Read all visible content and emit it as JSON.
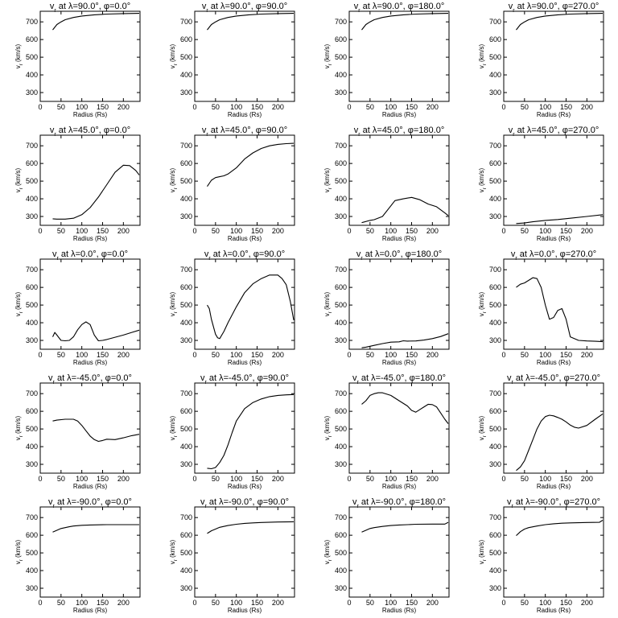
{
  "chart_data": {
    "type": "line",
    "grid_rows": 5,
    "grid_cols": 4,
    "xlabel": "Radius (Rs)",
    "ylabel": "v_r (km/s)",
    "xlim": [
      0,
      240
    ],
    "ylim": [
      250,
      760
    ],
    "xticks": [
      0,
      50,
      100,
      150,
      200
    ],
    "yticks": [
      300,
      400,
      500,
      600,
      700
    ],
    "grid": false,
    "panels": [
      {
        "title": "v_r at λ=90.0°, φ=0.0°",
        "x": [
          30,
          40,
          50,
          60,
          80,
          100,
          130,
          160,
          200,
          238
        ],
        "y": [
          655,
          685,
          700,
          712,
          725,
          733,
          740,
          744,
          747,
          748
        ]
      },
      {
        "title": "v_r at λ=90.0°, φ=90.0°",
        "x": [
          30,
          40,
          50,
          60,
          80,
          100,
          130,
          160,
          200,
          238
        ],
        "y": [
          655,
          685,
          700,
          712,
          725,
          733,
          740,
          744,
          747,
          748
        ]
      },
      {
        "title": "v_r at λ=90.0°, φ=180.0°",
        "x": [
          30,
          40,
          50,
          60,
          80,
          100,
          130,
          160,
          200,
          238
        ],
        "y": [
          655,
          685,
          700,
          712,
          725,
          733,
          740,
          744,
          747,
          748
        ]
      },
      {
        "title": "v_r at λ=90.0°, φ=270.0°",
        "x": [
          30,
          40,
          50,
          60,
          80,
          100,
          130,
          160,
          200,
          238
        ],
        "y": [
          655,
          685,
          700,
          712,
          725,
          733,
          740,
          744,
          747,
          748
        ]
      },
      {
        "title": "v_r at λ=45.0°, φ=0.0°",
        "x": [
          30,
          40,
          60,
          80,
          100,
          120,
          140,
          160,
          180,
          200,
          215,
          230,
          238
        ],
        "y": [
          287,
          285,
          285,
          290,
          310,
          350,
          410,
          480,
          550,
          590,
          588,
          560,
          535
        ]
      },
      {
        "title": "v_r at λ=45.0°, φ=90.0°",
        "x": [
          30,
          40,
          50,
          60,
          70,
          80,
          100,
          120,
          140,
          160,
          180,
          200,
          220,
          238
        ],
        "y": [
          470,
          505,
          520,
          525,
          530,
          540,
          575,
          625,
          660,
          685,
          700,
          708,
          712,
          714
        ]
      },
      {
        "title": "v_r at λ=45.0°, φ=180.0°",
        "x": [
          30,
          50,
          60,
          80,
          100,
          110,
          130,
          150,
          170,
          190,
          210,
          230,
          238
        ],
        "y": [
          265,
          278,
          282,
          300,
          360,
          390,
          400,
          408,
          395,
          370,
          355,
          320,
          305
        ]
      },
      {
        "title": "v_r at λ=45.0°, φ=270.0°",
        "x": [
          30,
          50,
          70,
          100,
          130,
          160,
          200,
          238
        ],
        "y": [
          260,
          263,
          270,
          278,
          283,
          290,
          300,
          310
        ]
      },
      {
        "title": "v_r at λ=0.0°, φ=0.0°",
        "x": [
          30,
          35,
          40,
          50,
          60,
          70,
          80,
          90,
          100,
          110,
          120,
          130,
          140,
          150,
          160,
          180,
          200,
          220,
          238
        ],
        "y": [
          320,
          345,
          330,
          300,
          298,
          300,
          320,
          360,
          390,
          405,
          390,
          330,
          298,
          300,
          305,
          318,
          330,
          345,
          358
        ]
      },
      {
        "title": "v_r at λ=0.0°, φ=90.0°",
        "x": [
          30,
          35,
          40,
          50,
          55,
          60,
          70,
          80,
          100,
          120,
          140,
          160,
          180,
          200,
          210,
          220,
          230,
          238
        ],
        "y": [
          500,
          480,
          420,
          335,
          315,
          310,
          350,
          400,
          490,
          570,
          620,
          650,
          670,
          670,
          650,
          615,
          520,
          415
        ]
      },
      {
        "title": "v_r at λ=0.0°, φ=180.0°",
        "x": [
          30,
          40,
          60,
          80,
          100,
          120,
          130,
          140,
          160,
          180,
          200,
          220,
          238
        ],
        "y": [
          258,
          262,
          272,
          282,
          290,
          292,
          298,
          296,
          297,
          302,
          310,
          322,
          338
        ]
      },
      {
        "title": "v_r at λ=0.0°, φ=270.0°",
        "x": [
          30,
          40,
          50,
          60,
          70,
          80,
          90,
          100,
          110,
          120,
          130,
          140,
          150,
          160,
          180,
          200,
          220,
          238
        ],
        "y": [
          600,
          618,
          625,
          640,
          655,
          650,
          600,
          500,
          420,
          430,
          470,
          480,
          420,
          320,
          300,
          297,
          295,
          293
        ]
      },
      {
        "title": "v_r at λ=-45.0°, φ=0.0°",
        "x": [
          30,
          40,
          60,
          80,
          90,
          100,
          110,
          120,
          130,
          140,
          150,
          160,
          180,
          200,
          220,
          238
        ],
        "y": [
          545,
          550,
          555,
          555,
          545,
          520,
          490,
          460,
          440,
          430,
          435,
          442,
          440,
          450,
          462,
          470
        ]
      },
      {
        "title": "v_r at λ=-45.0°, φ=90.0°",
        "x": [
          30,
          40,
          50,
          60,
          70,
          80,
          90,
          100,
          120,
          140,
          160,
          180,
          200,
          220,
          238
        ],
        "y": [
          278,
          275,
          282,
          310,
          350,
          410,
          480,
          545,
          615,
          650,
          670,
          683,
          690,
          693,
          695
        ]
      },
      {
        "title": "v_r at λ=-45.0°, φ=180.0°",
        "x": [
          30,
          40,
          50,
          60,
          70,
          80,
          100,
          120,
          140,
          150,
          160,
          170,
          180,
          190,
          200,
          210,
          220,
          230,
          238
        ],
        "y": [
          640,
          660,
          690,
          700,
          705,
          705,
          690,
          660,
          630,
          605,
          595,
          610,
          625,
          640,
          638,
          625,
          590,
          555,
          530
        ]
      },
      {
        "title": "v_r at λ=-45.0°, φ=270.0°",
        "x": [
          30,
          40,
          50,
          60,
          70,
          80,
          90,
          100,
          110,
          120,
          130,
          140,
          150,
          160,
          170,
          180,
          200,
          220,
          238
        ],
        "y": [
          265,
          285,
          320,
          380,
          440,
          500,
          545,
          570,
          578,
          574,
          565,
          555,
          540,
          522,
          510,
          505,
          520,
          555,
          585
        ]
      },
      {
        "title": "v_r at λ=-90.0°, φ=0.0°",
        "x": [
          30,
          40,
          50,
          60,
          70,
          80,
          100,
          120,
          140,
          160,
          200,
          238
        ],
        "y": [
          618,
          628,
          638,
          643,
          648,
          652,
          656,
          658,
          659,
          660,
          660,
          660
        ]
      },
      {
        "title": "v_r at λ=-90.0°, φ=90.0°",
        "x": [
          30,
          40,
          50,
          60,
          80,
          100,
          120,
          140,
          160,
          200,
          238
        ],
        "y": [
          610,
          625,
          635,
          645,
          655,
          662,
          667,
          670,
          672,
          675,
          676
        ]
      },
      {
        "title": "v_r at λ=-90.0°, φ=180.0°",
        "x": [
          30,
          40,
          50,
          60,
          80,
          100,
          120,
          140,
          160,
          200,
          230,
          238
        ],
        "y": [
          618,
          628,
          638,
          643,
          650,
          655,
          658,
          660,
          662,
          663,
          663,
          673
        ]
      },
      {
        "title": "v_r at λ=-90.0°, φ=270.0°",
        "x": [
          30,
          40,
          50,
          60,
          80,
          100,
          120,
          140,
          160,
          200,
          230,
          238
        ],
        "y": [
          598,
          620,
          635,
          643,
          652,
          660,
          665,
          668,
          670,
          672,
          673,
          685
        ]
      }
    ]
  }
}
